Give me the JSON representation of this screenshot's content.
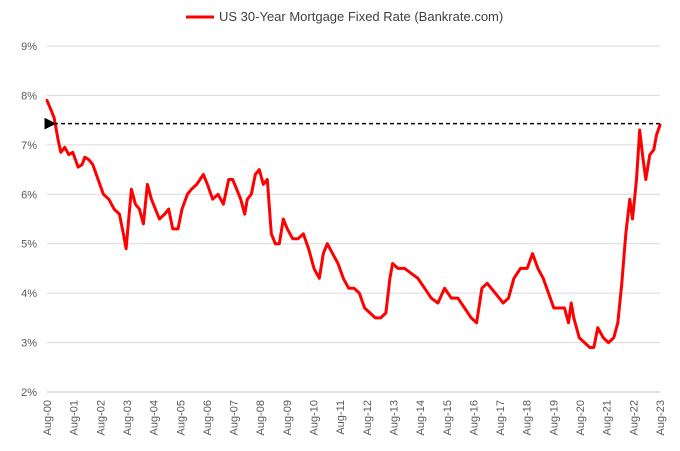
{
  "chart_data": {
    "type": "line",
    "legend": {
      "position": "top-center",
      "entries": [
        "US 30-Year Mortgage Fixed Rate (Bankrate.com)"
      ]
    },
    "grid": {
      "horizontal": true,
      "vertical": false
    },
    "ylim": [
      2,
      9
    ],
    "yticks": [
      2,
      3,
      4,
      5,
      6,
      7,
      8,
      9
    ],
    "ytick_labels": [
      "2%",
      "3%",
      "4%",
      "5%",
      "6%",
      "7%",
      "8%",
      "9%"
    ],
    "xlim": [
      2000.583,
      2023.583
    ],
    "xticks": [
      2000.583,
      2001.583,
      2002.583,
      2003.583,
      2004.583,
      2005.583,
      2006.583,
      2007.583,
      2008.583,
      2009.583,
      2010.583,
      2011.583,
      2012.583,
      2013.583,
      2014.583,
      2015.583,
      2016.583,
      2017.583,
      2018.583,
      2019.583,
      2020.583,
      2021.583,
      2022.583,
      2023.583
    ],
    "xtick_labels": [
      "Aug-00",
      "Aug-01",
      "Aug-02",
      "Aug-03",
      "Aug-04",
      "Aug-05",
      "Aug-06",
      "Aug-07",
      "Aug-08",
      "Aug-09",
      "Aug-10",
      "Aug-11",
      "Aug-12",
      "Aug-13",
      "Aug-14",
      "Aug-15",
      "Aug-16",
      "Aug-17",
      "Aug-18",
      "Aug-19",
      "Aug-20",
      "Aug-21",
      "Aug-22",
      "Aug-23"
    ],
    "series": [
      {
        "name": "US 30-Year Mortgage Fixed Rate (Bankrate.com)",
        "color": "#ff0000",
        "points": [
          [
            2000.583,
            7.9
          ],
          [
            2000.7,
            7.75
          ],
          [
            2000.85,
            7.55
          ],
          [
            2001.0,
            7.1
          ],
          [
            2001.1,
            6.85
          ],
          [
            2001.25,
            6.95
          ],
          [
            2001.4,
            6.8
          ],
          [
            2001.55,
            6.85
          ],
          [
            2001.75,
            6.55
          ],
          [
            2001.9,
            6.6
          ],
          [
            2002.0,
            6.75
          ],
          [
            2002.15,
            6.7
          ],
          [
            2002.3,
            6.6
          ],
          [
            2002.5,
            6.3
          ],
          [
            2002.7,
            6.0
          ],
          [
            2002.9,
            5.9
          ],
          [
            2003.1,
            5.7
          ],
          [
            2003.3,
            5.6
          ],
          [
            2003.45,
            5.2
          ],
          [
            2003.55,
            4.9
          ],
          [
            2003.65,
            5.5
          ],
          [
            2003.75,
            6.1
          ],
          [
            2003.9,
            5.8
          ],
          [
            2004.05,
            5.7
          ],
          [
            2004.2,
            5.4
          ],
          [
            2004.35,
            6.2
          ],
          [
            2004.5,
            5.9
          ],
          [
            2004.65,
            5.7
          ],
          [
            2004.8,
            5.5
          ],
          [
            2005.0,
            5.6
          ],
          [
            2005.15,
            5.7
          ],
          [
            2005.3,
            5.3
          ],
          [
            2005.5,
            5.3
          ],
          [
            2005.65,
            5.7
          ],
          [
            2005.85,
            6.0
          ],
          [
            2006.0,
            6.1
          ],
          [
            2006.2,
            6.2
          ],
          [
            2006.45,
            6.4
          ],
          [
            2006.6,
            6.2
          ],
          [
            2006.8,
            5.9
          ],
          [
            2007.0,
            6.0
          ],
          [
            2007.2,
            5.8
          ],
          [
            2007.4,
            6.3
          ],
          [
            2007.55,
            6.3
          ],
          [
            2007.7,
            6.1
          ],
          [
            2007.85,
            5.9
          ],
          [
            2008.0,
            5.6
          ],
          [
            2008.1,
            5.9
          ],
          [
            2008.25,
            6.0
          ],
          [
            2008.4,
            6.4
          ],
          [
            2008.55,
            6.5
          ],
          [
            2008.7,
            6.2
          ],
          [
            2008.85,
            6.3
          ],
          [
            2009.0,
            5.2
          ],
          [
            2009.15,
            5.0
          ],
          [
            2009.3,
            5.0
          ],
          [
            2009.45,
            5.5
          ],
          [
            2009.6,
            5.3
          ],
          [
            2009.8,
            5.1
          ],
          [
            2010.0,
            5.1
          ],
          [
            2010.2,
            5.2
          ],
          [
            2010.4,
            4.9
          ],
          [
            2010.6,
            4.5
          ],
          [
            2010.8,
            4.3
          ],
          [
            2010.95,
            4.8
          ],
          [
            2011.1,
            5.0
          ],
          [
            2011.3,
            4.8
          ],
          [
            2011.5,
            4.6
          ],
          [
            2011.7,
            4.3
          ],
          [
            2011.9,
            4.1
          ],
          [
            2012.1,
            4.1
          ],
          [
            2012.3,
            4.0
          ],
          [
            2012.5,
            3.7
          ],
          [
            2012.7,
            3.6
          ],
          [
            2012.9,
            3.5
          ],
          [
            2013.1,
            3.5
          ],
          [
            2013.3,
            3.6
          ],
          [
            2013.45,
            4.3
          ],
          [
            2013.55,
            4.6
          ],
          [
            2013.75,
            4.5
          ],
          [
            2014.0,
            4.5
          ],
          [
            2014.25,
            4.4
          ],
          [
            2014.5,
            4.3
          ],
          [
            2014.75,
            4.1
          ],
          [
            2015.0,
            3.9
          ],
          [
            2015.25,
            3.8
          ],
          [
            2015.5,
            4.1
          ],
          [
            2015.75,
            3.9
          ],
          [
            2016.0,
            3.9
          ],
          [
            2016.25,
            3.7
          ],
          [
            2016.5,
            3.5
          ],
          [
            2016.7,
            3.4
          ],
          [
            2016.9,
            4.1
          ],
          [
            2017.1,
            4.2
          ],
          [
            2017.4,
            4.0
          ],
          [
            2017.7,
            3.8
          ],
          [
            2017.9,
            3.9
          ],
          [
            2018.1,
            4.3
          ],
          [
            2018.35,
            4.5
          ],
          [
            2018.6,
            4.5
          ],
          [
            2018.8,
            4.8
          ],
          [
            2019.0,
            4.5
          ],
          [
            2019.2,
            4.3
          ],
          [
            2019.4,
            4.0
          ],
          [
            2019.6,
            3.7
          ],
          [
            2019.8,
            3.7
          ],
          [
            2020.0,
            3.7
          ],
          [
            2020.15,
            3.4
          ],
          [
            2020.25,
            3.8
          ],
          [
            2020.35,
            3.5
          ],
          [
            2020.55,
            3.1
          ],
          [
            2020.75,
            3.0
          ],
          [
            2020.95,
            2.9
          ],
          [
            2021.1,
            2.9
          ],
          [
            2021.25,
            3.3
          ],
          [
            2021.45,
            3.1
          ],
          [
            2021.65,
            3.0
          ],
          [
            2021.85,
            3.1
          ],
          [
            2022.0,
            3.4
          ],
          [
            2022.15,
            4.2
          ],
          [
            2022.3,
            5.2
          ],
          [
            2022.45,
            5.9
          ],
          [
            2022.55,
            5.5
          ],
          [
            2022.7,
            6.3
          ],
          [
            2022.82,
            7.3
          ],
          [
            2022.95,
            6.7
          ],
          [
            2023.05,
            6.3
          ],
          [
            2023.2,
            6.8
          ],
          [
            2023.35,
            6.9
          ],
          [
            2023.45,
            7.2
          ],
          [
            2023.583,
            7.4
          ]
        ]
      }
    ],
    "annotations": [
      {
        "type": "dashed-arrow",
        "from": [
          2023.583,
          7.43
        ],
        "to": [
          2000.65,
          7.43
        ],
        "color": "#000000"
      }
    ]
  }
}
